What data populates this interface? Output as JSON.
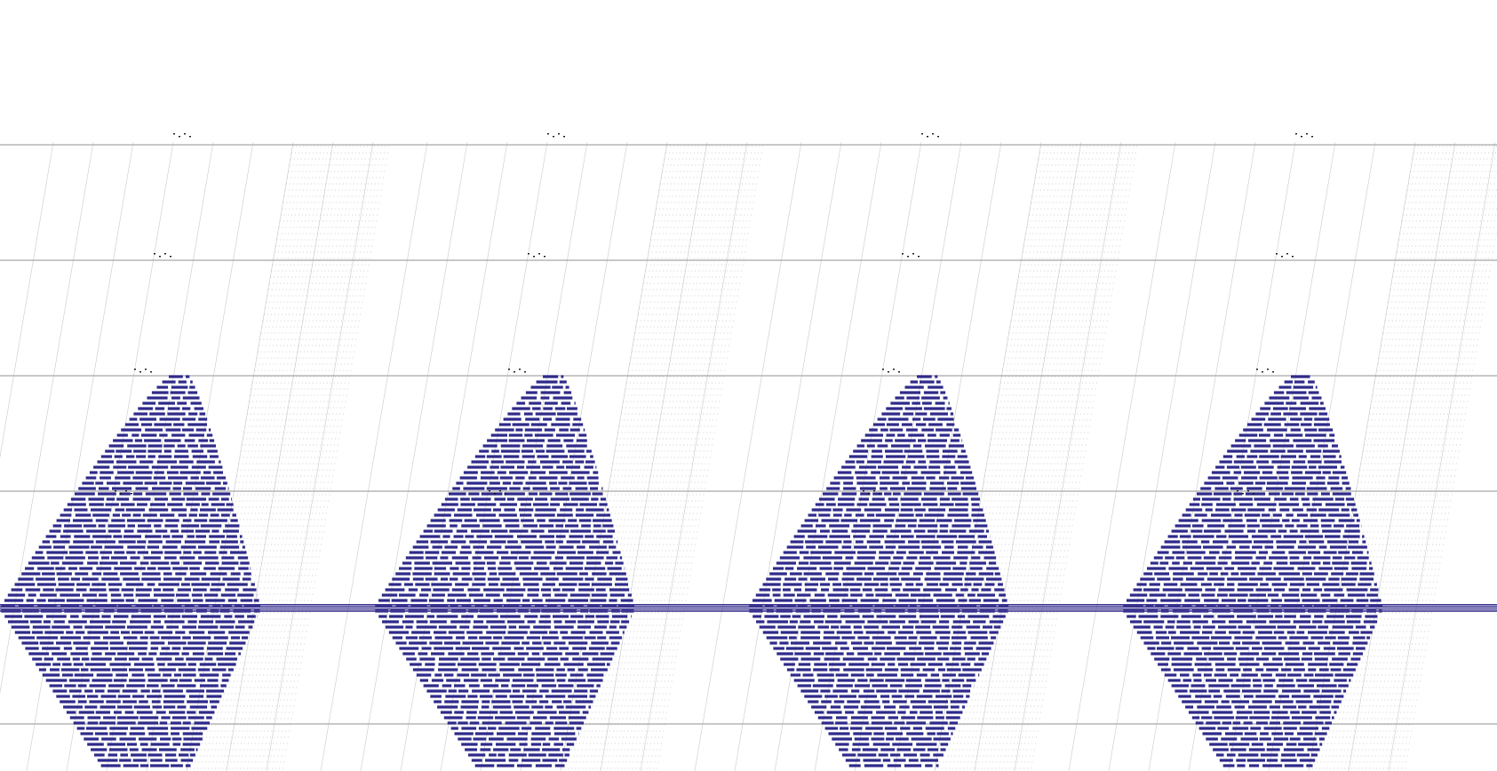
{
  "diagram": {
    "kind": "repeated-panel-dot-chart",
    "panels": 4,
    "horizontal_bands": 5,
    "colors": {
      "background": "#ffffff",
      "bars": "#4a3f9c",
      "bars_dark": "#2f2a8a",
      "band_line": "#a8a8a8",
      "grid": "#c9c9c9",
      "center_band": "#3d3590"
    },
    "panel_labels": [
      "",
      "",
      "",
      ""
    ]
  }
}
